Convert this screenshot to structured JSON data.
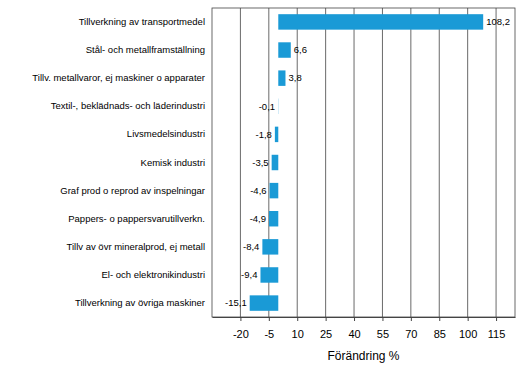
{
  "chart_data": {
    "type": "bar",
    "orientation": "horizontal",
    "categories": [
      "Tillverkning av transportmedel",
      "Stål- och metallframställning",
      "Tillv. metallvaror, ej maskiner o apparater",
      "Textil-, beklädnads- och läderindustri",
      "Livsmedelsindustri",
      "Kemisk industri",
      "Graf prod o reprod av inspelningar",
      "Pappers- o pappersvarutillverkn.",
      "Tillv av övr mineralprod, ej metall",
      "El- och elektronikindustri",
      "Tillverkning av övriga maskiner"
    ],
    "values": [
      108.2,
      6.6,
      3.8,
      -0.1,
      -1.8,
      -3.5,
      -4.6,
      -4.9,
      -8.4,
      -9.4,
      -15.1
    ],
    "value_labels": [
      "108,2",
      "6,6",
      "3,8",
      "-0,1",
      "-1,8",
      "-3,5",
      "-4,6",
      "-4,9",
      "-8,4",
      "-9,4",
      "-15,1"
    ],
    "color": "#1a9ad6",
    "x_label": "Förändring %",
    "xlim": [
      -35,
      125
    ],
    "xticks": [
      -20,
      -5,
      10,
      25,
      40,
      55,
      70,
      85,
      100,
      115
    ],
    "grid": true,
    "data_labels": true
  }
}
